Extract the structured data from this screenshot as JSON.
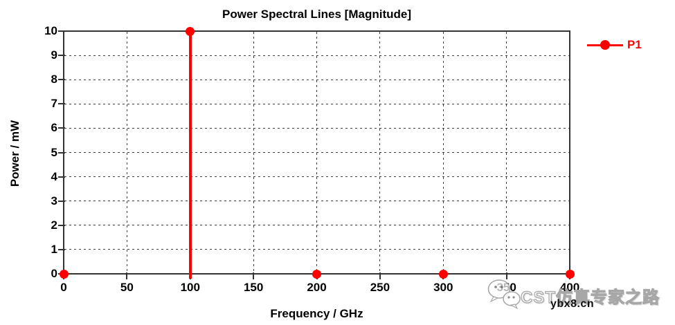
{
  "chart_data": {
    "type": "line",
    "style": "stem-with-markers",
    "title": "Power Spectral Lines [Magnitude]",
    "xlabel": "Frequency / GHz",
    "ylabel": "Power / mW",
    "xlim": [
      0,
      400
    ],
    "ylim": [
      0,
      10
    ],
    "x_ticks": [
      0,
      50,
      100,
      150,
      200,
      250,
      300,
      350,
      400
    ],
    "y_ticks": [
      0,
      1,
      2,
      3,
      4,
      5,
      6,
      7,
      8,
      9,
      10
    ],
    "grid": "dashed",
    "legend": {
      "position": "top-right-outside",
      "entries": [
        {
          "label": "P1",
          "color": "#ff0000",
          "marker": "circle"
        }
      ]
    },
    "series": [
      {
        "name": "P1",
        "color": "#ff0000",
        "points": [
          {
            "x": 0,
            "y": 0
          },
          {
            "x": 100,
            "y": 10
          },
          {
            "x": 200,
            "y": 0
          },
          {
            "x": 300,
            "y": 0
          },
          {
            "x": 400,
            "y": 0
          }
        ]
      }
    ]
  },
  "watermark": {
    "brand": "CST仿真专家之路",
    "site": "ybx8.cn",
    "icon": "wechat-icon"
  },
  "colors": {
    "series": "#ff0000",
    "frame": "#333333",
    "grid": "#3d3d3d",
    "text": "#000000",
    "background": "#ffffff"
  }
}
